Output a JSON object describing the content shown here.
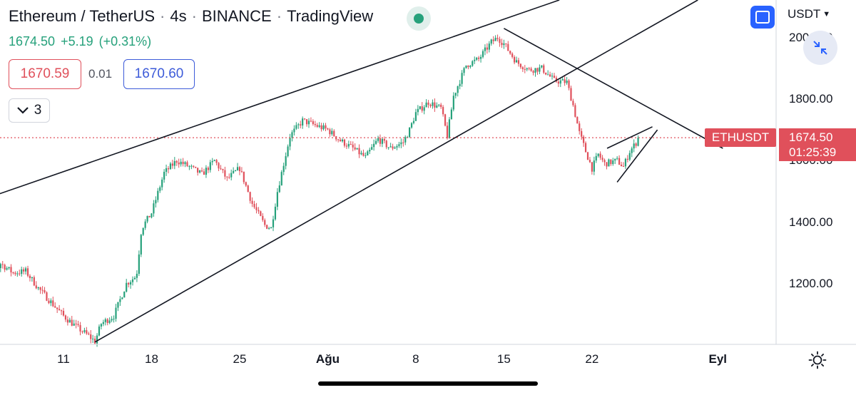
{
  "header": {
    "symbol": "Ethereum / TetherUS",
    "interval": "4s",
    "exchange": "BINANCE",
    "source": "TradingView"
  },
  "quote": {
    "last": "1674.50",
    "change": "+5.19",
    "change_pct": "(+0.31%)",
    "bid": "1670.59",
    "spread": "0.01",
    "ask": "1670.60"
  },
  "indicators_count": "3",
  "currency": "USDT",
  "price_label": {
    "symbol": "ETHUSDT",
    "value": "1674.50",
    "countdown": "01:25:39"
  },
  "colors": {
    "up": "#26a17b",
    "down": "#e0505b",
    "accent": "#2962ff",
    "trendline": "#131722"
  },
  "icons": {
    "live": "live-status-icon",
    "layout": "layout-icon",
    "collapse": "collapse-icon",
    "theme": "sun-icon",
    "chevron": "chevron-down-icon"
  },
  "chart_data": {
    "type": "candlestick",
    "symbol": "ETHUSDT",
    "candle_interval": "4h",
    "y_ticks": [
      "2000.00",
      "1800.00",
      "1600.00",
      "1400.00",
      "1200.00"
    ],
    "y_tick_values": [
      2000,
      1800,
      1600,
      1400,
      1200
    ],
    "ylim": [
      1000,
      2100
    ],
    "x_ticks": [
      {
        "label": "11",
        "day": 11,
        "bold": false
      },
      {
        "label": "18",
        "day": 18,
        "bold": false
      },
      {
        "label": "25",
        "day": 25,
        "bold": false
      },
      {
        "label": "Ağu",
        "day": 32,
        "bold": true
      },
      {
        "label": "8",
        "day": 39,
        "bold": false
      },
      {
        "label": "15",
        "day": 46,
        "bold": false
      },
      {
        "label": "22",
        "day": 53,
        "bold": false
      },
      {
        "label": "Eyl",
        "day": 63,
        "bold": true
      }
    ],
    "xlim_days": [
      4,
      68
    ],
    "last_price": 1674.5,
    "price_path": [
      [
        4.0,
        1130
      ],
      [
        5.0,
        1200
      ],
      [
        6.0,
        1265
      ],
      [
        7.0,
        1235
      ],
      [
        8.0,
        1240
      ],
      [
        9.0,
        1185
      ],
      [
        10.0,
        1140
      ],
      [
        11.0,
        1095
      ],
      [
        12.0,
        1060
      ],
      [
        13.0,
        1030
      ],
      [
        13.5,
        1012
      ],
      [
        14.0,
        1070
      ],
      [
        15.0,
        1095
      ],
      [
        16.0,
        1200
      ],
      [
        16.8,
        1225
      ],
      [
        17.2,
        1380
      ],
      [
        18.0,
        1430
      ],
      [
        19.0,
        1560
      ],
      [
        20.0,
        1600
      ],
      [
        21.0,
        1580
      ],
      [
        22.0,
        1555
      ],
      [
        23.0,
        1600
      ],
      [
        24.0,
        1540
      ],
      [
        25.0,
        1575
      ],
      [
        26.0,
        1460
      ],
      [
        27.0,
        1390
      ],
      [
        27.5,
        1380
      ],
      [
        28.0,
        1500
      ],
      [
        29.0,
        1680
      ],
      [
        30.0,
        1730
      ],
      [
        31.0,
        1715
      ],
      [
        32.0,
        1700
      ],
      [
        33.0,
        1665
      ],
      [
        34.0,
        1640
      ],
      [
        35.0,
        1610
      ],
      [
        36.0,
        1670
      ],
      [
        37.0,
        1640
      ],
      [
        38.0,
        1660
      ],
      [
        38.5,
        1700
      ],
      [
        39.0,
        1755
      ],
      [
        40.0,
        1790
      ],
      [
        41.0,
        1770
      ],
      [
        41.5,
        1680
      ],
      [
        42.0,
        1810
      ],
      [
        43.0,
        1910
      ],
      [
        44.0,
        1930
      ],
      [
        45.0,
        1985
      ],
      [
        45.5,
        2000
      ],
      [
        46.0,
        1980
      ],
      [
        47.0,
        1920
      ],
      [
        48.0,
        1895
      ],
      [
        49.0,
        1900
      ],
      [
        50.0,
        1860
      ],
      [
        51.0,
        1855
      ],
      [
        51.5,
        1780
      ],
      [
        52.0,
        1690
      ],
      [
        52.5,
        1630
      ],
      [
        53.0,
        1575
      ],
      [
        53.5,
        1620
      ],
      [
        54.0,
        1590
      ],
      [
        55.0,
        1600
      ],
      [
        55.5,
        1580
      ],
      [
        56.0,
        1630
      ],
      [
        56.8,
        1674.5
      ]
    ],
    "drawings": [
      {
        "name": "upper-channel-line",
        "points": [
          [
            4.0,
            1465
          ],
          [
            28.5,
            1812
          ]
        ],
        "extend_right": true
      },
      {
        "name": "lower-channel-line",
        "points": [
          [
            13.5,
            1010
          ],
          [
            41.5,
            1660
          ]
        ],
        "extend_right": true
      },
      {
        "name": "descending-trendline",
        "points": [
          [
            46.0,
            2030
          ],
          [
            63.4,
            1640
          ]
        ],
        "extend_right": false
      },
      {
        "name": "wedge-upper-line",
        "points": [
          [
            54.2,
            1640
          ],
          [
            57.8,
            1710
          ]
        ],
        "extend_right": false
      },
      {
        "name": "wedge-lower-line",
        "points": [
          [
            55.0,
            1530
          ],
          [
            58.2,
            1700
          ]
        ],
        "extend_right": false
      }
    ]
  }
}
